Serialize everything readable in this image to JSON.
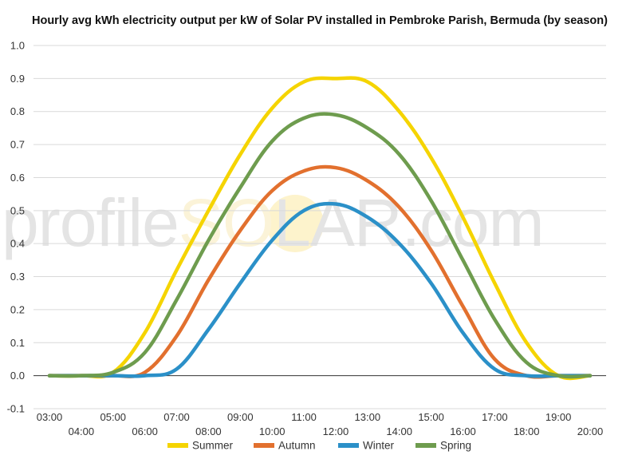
{
  "chart_data": {
    "type": "line",
    "title": "Hourly avg kWh electricity output per kW of Solar PV installed in Pembroke Parish, Bermuda (by season)",
    "xlabel": "",
    "ylabel": "",
    "ylim": [
      -0.1,
      1.0
    ],
    "yticks": [
      "-0.1",
      "0.0",
      "0.1",
      "0.2",
      "0.3",
      "0.4",
      "0.5",
      "0.6",
      "0.7",
      "0.8",
      "0.9",
      "1.0"
    ],
    "x": [
      "03:00",
      "04:00",
      "05:00",
      "06:00",
      "07:00",
      "08:00",
      "09:00",
      "10:00",
      "11:00",
      "12:00",
      "13:00",
      "14:00",
      "15:00",
      "16:00",
      "17:00",
      "18:00",
      "19:00",
      "20:00"
    ],
    "grid": true,
    "legend_position": "bottom",
    "series": [
      {
        "name": "Summer",
        "color": "#f5d400",
        "values": [
          0.0,
          0.0,
          0.01,
          0.13,
          0.32,
          0.5,
          0.67,
          0.81,
          0.89,
          0.9,
          0.89,
          0.8,
          0.66,
          0.48,
          0.28,
          0.1,
          0.0,
          0.0
        ]
      },
      {
        "name": "Autumn",
        "color": "#e2702e",
        "values": [
          0.0,
          0.0,
          0.0,
          0.01,
          0.12,
          0.29,
          0.44,
          0.56,
          0.62,
          0.63,
          0.59,
          0.51,
          0.38,
          0.21,
          0.05,
          0.0,
          0.0,
          0.0
        ]
      },
      {
        "name": "Winter",
        "color": "#2b90c8",
        "values": [
          0.0,
          0.0,
          0.0,
          0.0,
          0.02,
          0.14,
          0.28,
          0.41,
          0.5,
          0.52,
          0.48,
          0.4,
          0.28,
          0.13,
          0.02,
          0.0,
          0.0,
          0.0
        ]
      },
      {
        "name": "Spring",
        "color": "#6e9c4e",
        "values": [
          0.0,
          0.0,
          0.01,
          0.07,
          0.23,
          0.41,
          0.57,
          0.71,
          0.78,
          0.79,
          0.75,
          0.67,
          0.53,
          0.35,
          0.17,
          0.04,
          0.0,
          0.0
        ]
      }
    ]
  },
  "watermark": {
    "left_text": "profile",
    "sun_letters": "SO",
    "right_text": "LAR.com",
    "sun_color": "#fdf3cc"
  }
}
